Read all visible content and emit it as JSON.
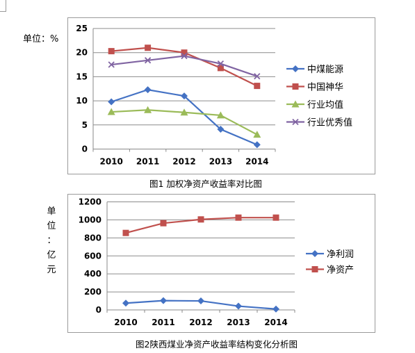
{
  "chart_data": [
    {
      "type": "line",
      "title": "",
      "unit_label": "单位：%",
      "caption": "图1 加权净资产收益率对比图",
      "categories": [
        "2010",
        "2011",
        "2012",
        "2013",
        "2014"
      ],
      "ylim": [
        0,
        25
      ],
      "yticks": [
        0,
        5,
        10,
        15,
        20,
        25
      ],
      "grid": true,
      "legend_position": "right",
      "series": [
        {
          "name": "中煤能源",
          "values": [
            9.8,
            12.3,
            11.0,
            4.1,
            0.9
          ],
          "color": "#4472C4",
          "marker": "diamond"
        },
        {
          "name": "中国神华",
          "values": [
            20.3,
            21.0,
            20.0,
            16.8,
            13.1
          ],
          "color": "#C0504D",
          "marker": "square"
        },
        {
          "name": "行业均值",
          "values": [
            7.7,
            8.1,
            7.6,
            7.0,
            3.0
          ],
          "color": "#9BBB59",
          "marker": "triangle"
        },
        {
          "name": "行业优秀值",
          "values": [
            17.5,
            18.4,
            19.3,
            17.7,
            15.1
          ],
          "color": "#8064A2",
          "marker": "x"
        }
      ]
    },
    {
      "type": "line",
      "title": "",
      "unit_label": "单位：亿元",
      "caption": "图2陕西煤业净资产收益率结构变化分析图",
      "categories": [
        "2010",
        "2011",
        "2012",
        "2013",
        "2014"
      ],
      "ylim": [
        0,
        1200
      ],
      "yticks": [
        0,
        200,
        400,
        600,
        800,
        1000,
        1200
      ],
      "grid": true,
      "legend_position": "right",
      "series": [
        {
          "name": "净利润",
          "values": [
            75,
            103,
            100,
            42,
            10
          ],
          "color": "#4472C4",
          "marker": "diamond"
        },
        {
          "name": "净资产",
          "values": [
            855,
            963,
            1005,
            1025,
            1025
          ],
          "color": "#C0504D",
          "marker": "square"
        }
      ]
    }
  ]
}
